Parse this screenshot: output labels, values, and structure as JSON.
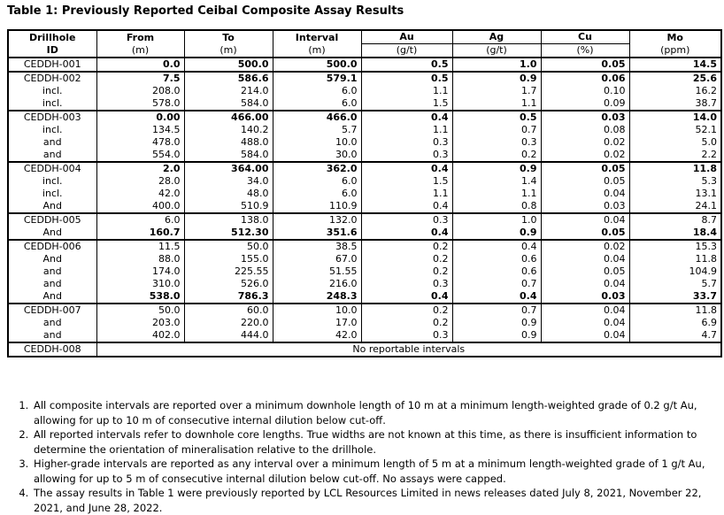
{
  "title": "Table 1: Previously Reported Ceibal Composite Assay Results",
  "table": {
    "header": {
      "drillhole_l1": "Drillhole",
      "drillhole_l2": "ID",
      "from": "From",
      "from_unit": "(m)",
      "to": "To",
      "to_unit": "(m)",
      "interval": "Interval",
      "interval_unit": "(m)",
      "au": "Au",
      "au_unit": "(g/t)",
      "ag": "Ag",
      "ag_unit": "(g/t)",
      "cu": "Cu",
      "cu_unit": "(%)",
      "mo": "Mo",
      "mo_unit": "(ppm)"
    },
    "rows": [
      {
        "id": "CEDDH-001",
        "values": [
          "0.0",
          "500.0",
          "500.0",
          "0.5",
          "1.0",
          "0.05",
          "14.5"
        ],
        "bold": true,
        "group_start": true
      },
      {
        "id": "CEDDH-002",
        "values": [
          "7.5",
          "586.6",
          "579.1",
          "0.5",
          "0.9",
          "0.06",
          "25.6"
        ],
        "bold": true,
        "group_start": true
      },
      {
        "id": "incl.",
        "values": [
          "208.0",
          "214.0",
          "6.0",
          "1.1",
          "1.7",
          "0.10",
          "16.2"
        ],
        "bold": false,
        "group_start": false
      },
      {
        "id": "incl.",
        "values": [
          "578.0",
          "584.0",
          "6.0",
          "1.5",
          "1.1",
          "0.09",
          "38.7"
        ],
        "bold": false,
        "group_start": false
      },
      {
        "id": "CEDDH-003",
        "values": [
          "0.00",
          "466.00",
          "466.0",
          "0.4",
          "0.5",
          "0.03",
          "14.0"
        ],
        "bold": true,
        "group_start": true
      },
      {
        "id": "incl.",
        "values": [
          "134.5",
          "140.2",
          "5.7",
          "1.1",
          "0.7",
          "0.08",
          "52.1"
        ],
        "bold": false,
        "group_start": false
      },
      {
        "id": "and",
        "values": [
          "478.0",
          "488.0",
          "10.0",
          "0.3",
          "0.3",
          "0.02",
          "5.0"
        ],
        "bold": false,
        "group_start": false
      },
      {
        "id": "and",
        "values": [
          "554.0",
          "584.0",
          "30.0",
          "0.3",
          "0.2",
          "0.02",
          "2.2"
        ],
        "bold": false,
        "group_start": false
      },
      {
        "id": "CEDDH-004",
        "values": [
          "2.0",
          "364.00",
          "362.0",
          "0.4",
          "0.9",
          "0.05",
          "11.8"
        ],
        "bold": true,
        "group_start": true
      },
      {
        "id": "incl.",
        "values": [
          "28.0",
          "34.0",
          "6.0",
          "1.5",
          "1.4",
          "0.05",
          "5.3"
        ],
        "bold": false,
        "group_start": false
      },
      {
        "id": "incl.",
        "values": [
          "42.0",
          "48.0",
          "6.0",
          "1.1",
          "1.1",
          "0.04",
          "13.1"
        ],
        "bold": false,
        "group_start": false
      },
      {
        "id": "And",
        "values": [
          "400.0",
          "510.9",
          "110.9",
          "0.4",
          "0.8",
          "0.03",
          "24.1"
        ],
        "bold": false,
        "group_start": false
      },
      {
        "id": "CEDDH-005",
        "values": [
          "6.0",
          "138.0",
          "132.0",
          "0.3",
          "1.0",
          "0.04",
          "8.7"
        ],
        "bold": false,
        "group_start": true
      },
      {
        "id": "And",
        "values": [
          "160.7",
          "512.30",
          "351.6",
          "0.4",
          "0.9",
          "0.05",
          "18.4"
        ],
        "bold": true,
        "group_start": false
      },
      {
        "id": "CEDDH-006",
        "values": [
          "11.5",
          "50.0",
          "38.5",
          "0.2",
          "0.4",
          "0.02",
          "15.3"
        ],
        "bold": false,
        "group_start": true
      },
      {
        "id": "And",
        "values": [
          "88.0",
          "155.0",
          "67.0",
          "0.2",
          "0.6",
          "0.04",
          "11.8"
        ],
        "bold": false,
        "group_start": false
      },
      {
        "id": "and",
        "values": [
          "174.0",
          "225.55",
          "51.55",
          "0.2",
          "0.6",
          "0.05",
          "104.9"
        ],
        "bold": false,
        "group_start": false
      },
      {
        "id": "and",
        "values": [
          "310.0",
          "526.0",
          "216.0",
          "0.3",
          "0.7",
          "0.04",
          "5.7"
        ],
        "bold": false,
        "group_start": false
      },
      {
        "id": "And",
        "values": [
          "538.0",
          "786.3",
          "248.3",
          "0.4",
          "0.4",
          "0.03",
          "33.7"
        ],
        "bold": true,
        "group_start": false
      },
      {
        "id": "CEDDH-007",
        "values": [
          "50.0",
          "60.0",
          "10.0",
          "0.2",
          "0.7",
          "0.04",
          "11.8"
        ],
        "bold": false,
        "group_start": true
      },
      {
        "id": "and",
        "values": [
          "203.0",
          "220.0",
          "17.0",
          "0.2",
          "0.9",
          "0.04",
          "6.9"
        ],
        "bold": false,
        "group_start": false
      },
      {
        "id": "and",
        "values": [
          "402.0",
          "444.0",
          "42.0",
          "0.3",
          "0.9",
          "0.04",
          "4.7"
        ],
        "bold": false,
        "group_start": false
      },
      {
        "id": "CEDDH-008",
        "span_text": "No reportable intervals",
        "group_start": true
      }
    ]
  },
  "footnotes": [
    "All composite intervals are reported over a minimum downhole length of 10 m at a minimum length-weighted grade of 0.2 g/t Au, allowing for up to 10 m of consecutive internal dilution below cut-off.",
    "All reported intervals refer to downhole core lengths. True widths are not known at this time, as there is insufficient information to determine the orientation of mineralisation relative to the drillhole.",
    "Higher-grade intervals are reported as any interval over a minimum length of 5 m at a minimum length-weighted grade of 1 g/t Au, allowing for up to 5 m of consecutive internal dilution below cut-off. No assays were capped.",
    "The assay results in Table 1 were previously reported by LCL Resources Limited in news releases dated July 8, 2021, November 22, 2021, and June 28, 2022."
  ],
  "colors": {
    "background": "#ffffff",
    "text": "#000000",
    "border": "#000000"
  }
}
